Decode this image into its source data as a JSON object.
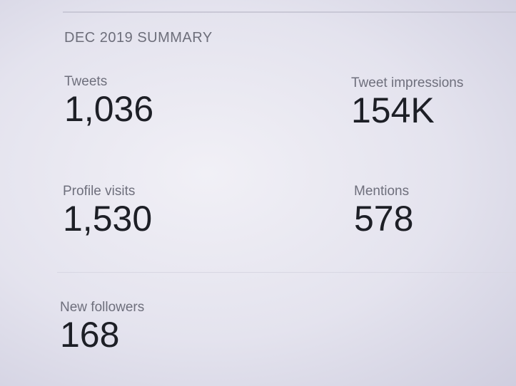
{
  "summary": {
    "title": "DEC 2019 SUMMARY",
    "metrics": [
      {
        "label": "Tweets",
        "value": "1,036"
      },
      {
        "label": "Tweet impressions",
        "value": "154K"
      },
      {
        "label": "Profile visits",
        "value": "1,530"
      },
      {
        "label": "Mentions",
        "value": "578"
      },
      {
        "label": "New followers",
        "value": "168"
      }
    ]
  }
}
